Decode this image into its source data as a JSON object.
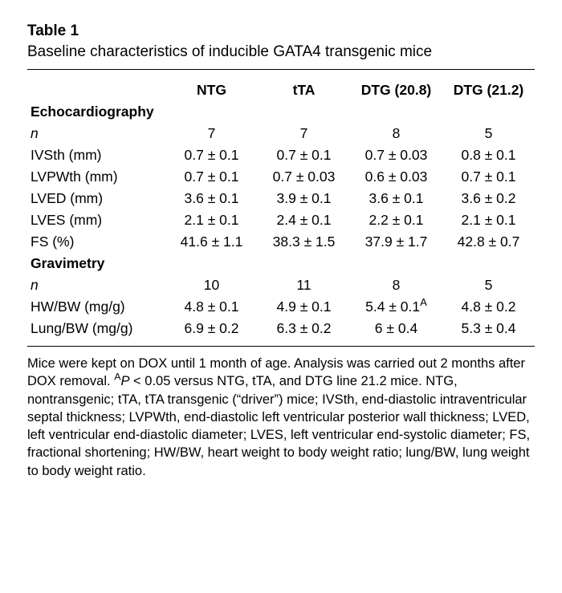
{
  "table_number": "Table 1",
  "title": "Baseline characteristics of inducible GATA4 transgenic mice",
  "columns": [
    "NTG",
    "tTA",
    "DTG (20.8)",
    "DTG (21.2)"
  ],
  "sections": {
    "echo": "Echocardiography",
    "grav": "Gravimetry"
  },
  "rows": {
    "n_echo": {
      "label": "n",
      "values": [
        "7",
        "7",
        "8",
        "5"
      ]
    },
    "ivsth": {
      "label": "IVSth (mm)",
      "values": [
        "0.7 ± 0.1",
        "0.7 ± 0.1",
        "0.7 ± 0.03",
        "0.8 ± 0.1"
      ]
    },
    "lvpwth": {
      "label": "LVPWth (mm)",
      "values": [
        "0.7 ± 0.1",
        "0.7 ± 0.03",
        "0.6 ± 0.03",
        "0.7 ± 0.1"
      ]
    },
    "lved": {
      "label": "LVED (mm)",
      "values": [
        "3.6 ± 0.1",
        "3.9 ± 0.1",
        "3.6 ± 0.1",
        "3.6 ± 0.2"
      ]
    },
    "lves": {
      "label": "LVES (mm)",
      "values": [
        "2.1 ± 0.1",
        "2.4 ± 0.1",
        "2.2 ± 0.1",
        "2.1 ± 0.1"
      ]
    },
    "fs": {
      "label": "FS (%)",
      "values": [
        "41.6 ± 1.1",
        "38.3 ± 1.5",
        "37.9 ± 1.7",
        "42.8 ± 0.7"
      ]
    },
    "n_grav": {
      "label": "n",
      "values": [
        "10",
        "11",
        "8",
        "5"
      ]
    },
    "hwbw": {
      "label": "HW/BW (mg/g)",
      "values": [
        "4.8 ± 0.1",
        "4.9 ± 0.1",
        "5.4 ± 0.1",
        "4.8 ± 0.2"
      ],
      "sup_idx": 2,
      "sup_mark": "A"
    },
    "lungbw": {
      "label": "Lung/BW (mg/g)",
      "values": [
        "6.9 ± 0.2",
        "6.3 ± 0.2",
        "6 ± 0.4",
        "5.3 ± 0.4"
      ]
    }
  },
  "footnote": {
    "p1": "Mice were kept on DOX until 1 month of age. Analysis was carried out 2 months after DOX removal. ",
    "supA": "A",
    "pval": "P",
    "p2": " < 0.05 versus NTG, tTA, and DTG line 21.2 mice. NTG, nontransgenic; tTA, tTA transgenic (“driver”) mice; IVSth, end-diastolic intraventricular septal thickness; LVPWth, end-diastolic left ventricular posterior wall thickness; LVED, left ventricular end-diastolic diameter; LVES, left ventricular end-systolic diameter; FS, fractional shortening; HW/BW, heart weight to body weight ratio; lung/BW, lung weight to body weight ratio."
  }
}
